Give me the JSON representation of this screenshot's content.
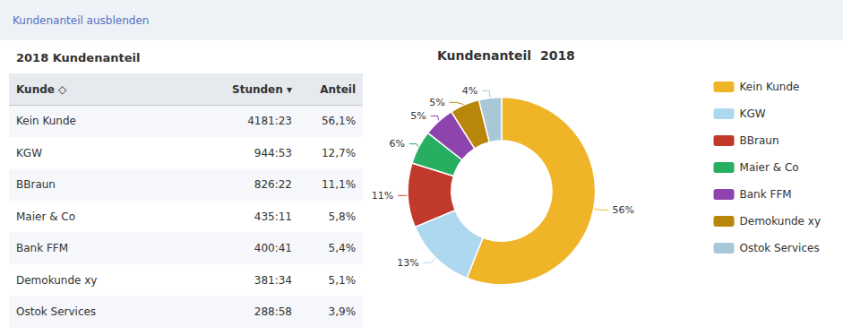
{
  "chart_data": [
    {
      "type": "table",
      "annotations": [
        "Kundenanteil ausblenden"
      ],
      "title": "2018 Kundenanteil",
      "columns": [
        "Kunde ◇",
        "Stunden ▾",
        "Anteil"
      ],
      "rows": [
        [
          "Kein Kunde",
          "4181:23",
          "56,1%"
        ],
        [
          "KGW",
          "944:53",
          "12,7%"
        ],
        [
          "BBraun",
          "826:22",
          "11,1%"
        ],
        [
          "Maier & Co",
          "435:11",
          "5,8%"
        ],
        [
          "Bank FFM",
          "400:41",
          "5,4%"
        ],
        [
          "Demokunde xy",
          "381:34",
          "5,1%"
        ],
        [
          "Ostok Services",
          "288:58",
          "3,9%"
        ]
      ]
    },
    {
      "type": "pie",
      "title": "Kundenanteil  2018",
      "categories": [
        "Kein Kunde",
        "KGW",
        "BBraun",
        "Maier & Co",
        "Bank FFM",
        "Demokunde xy",
        "Ostok Services"
      ],
      "values": [
        56.1,
        12.7,
        11.1,
        5.8,
        5.4,
        5.1,
        3.9
      ],
      "value_labels": [
        "56%",
        "13%",
        "11%",
        "6%",
        "5%",
        "5%",
        "4%"
      ],
      "colors": [
        "#f0b429",
        "#add8f0",
        "#c0392b",
        "#27ae60",
        "#8e44ad",
        "#b8860b",
        "#a8c8d8"
      ],
      "legend": "right"
    }
  ]
}
